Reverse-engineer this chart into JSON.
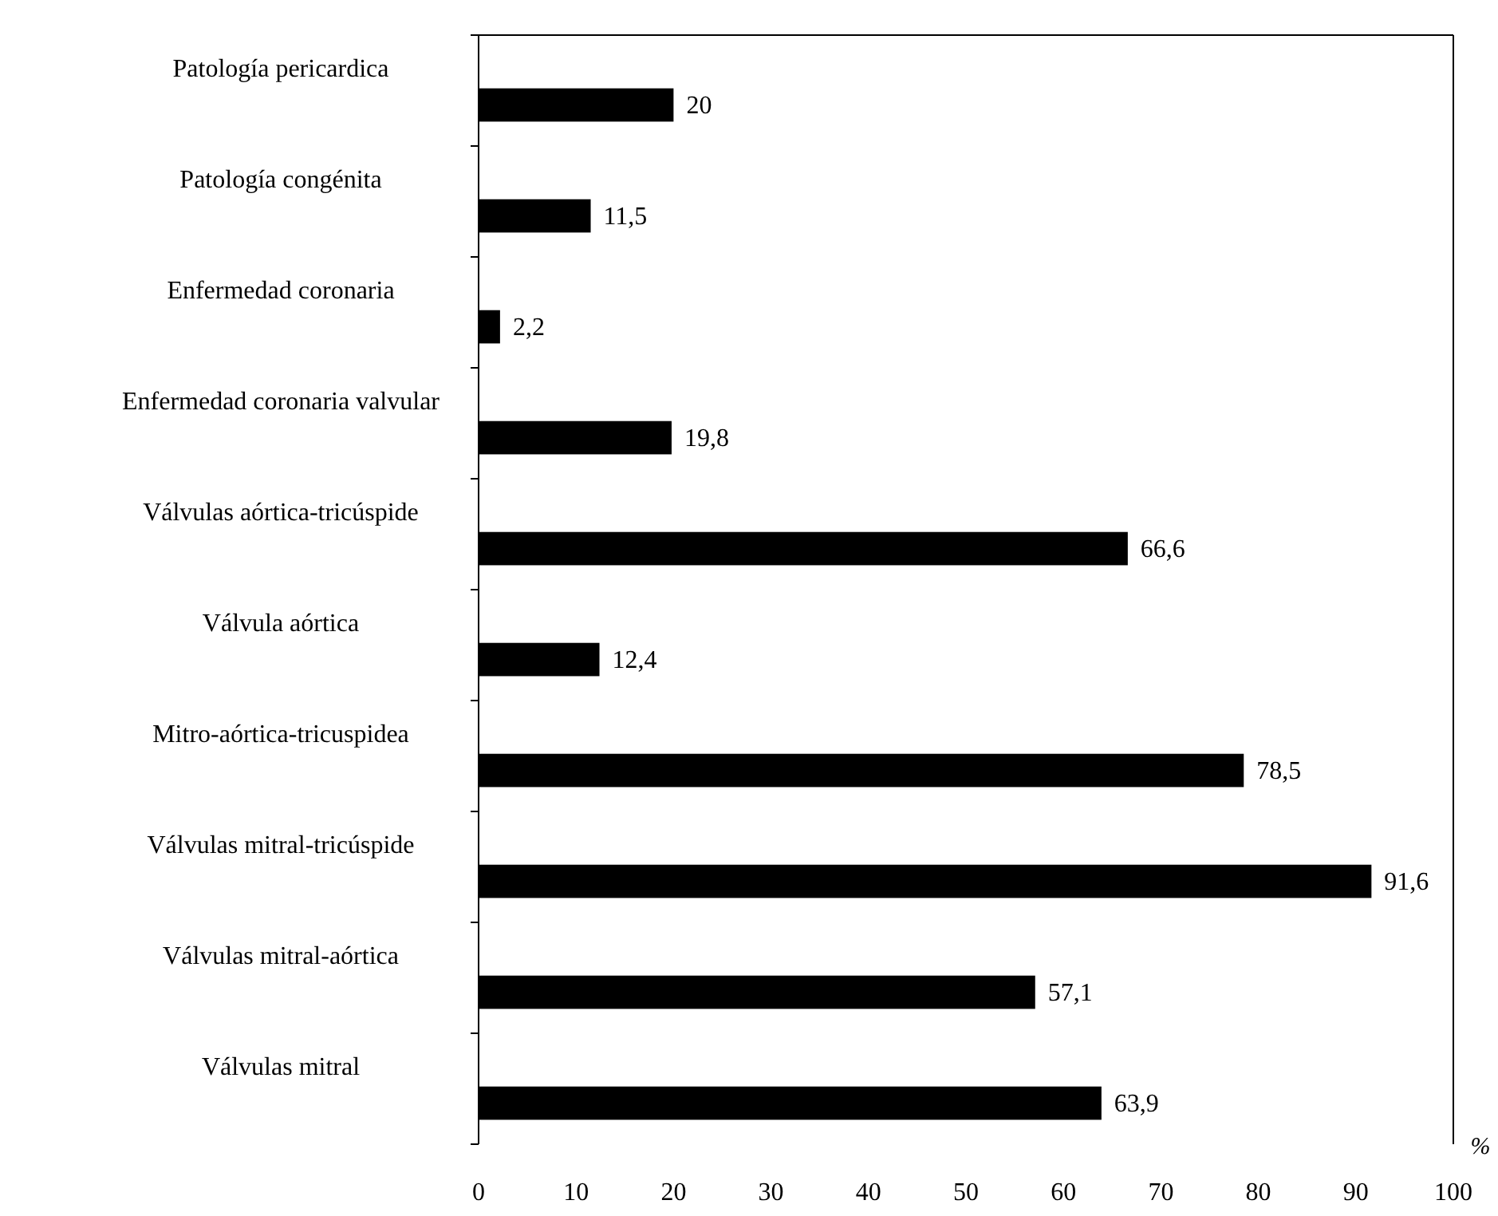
{
  "chart_data": {
    "type": "bar",
    "orientation": "horizontal",
    "xlabel": "%",
    "categories": [
      "Patología pericardica",
      "Patología congénita",
      "Enfermedad coronaria",
      "Enfermedad coronaria valvular",
      "Válvulas aórtica-tricúspide",
      "Válvula aórtica",
      "Mitro-aórtica-tricuspidea",
      "Válvulas mitral-tricúspide",
      "Válvulas mitral-aórtica",
      "Válvulas mitral"
    ],
    "values": [
      20,
      11.5,
      2.2,
      19.8,
      66.6,
      12.4,
      78.5,
      91.6,
      57.1,
      63.9
    ],
    "value_labels": [
      "20",
      "11,5",
      "2,2",
      "19,8",
      "66,6",
      "12,4",
      "78,5",
      "91,6",
      "57,1",
      "63,9"
    ],
    "color": "#000000",
    "xlim": [
      0,
      100
    ],
    "xticks": [
      0,
      10,
      20,
      30,
      40,
      50,
      60,
      70,
      80,
      90,
      100
    ],
    "grid": false
  }
}
